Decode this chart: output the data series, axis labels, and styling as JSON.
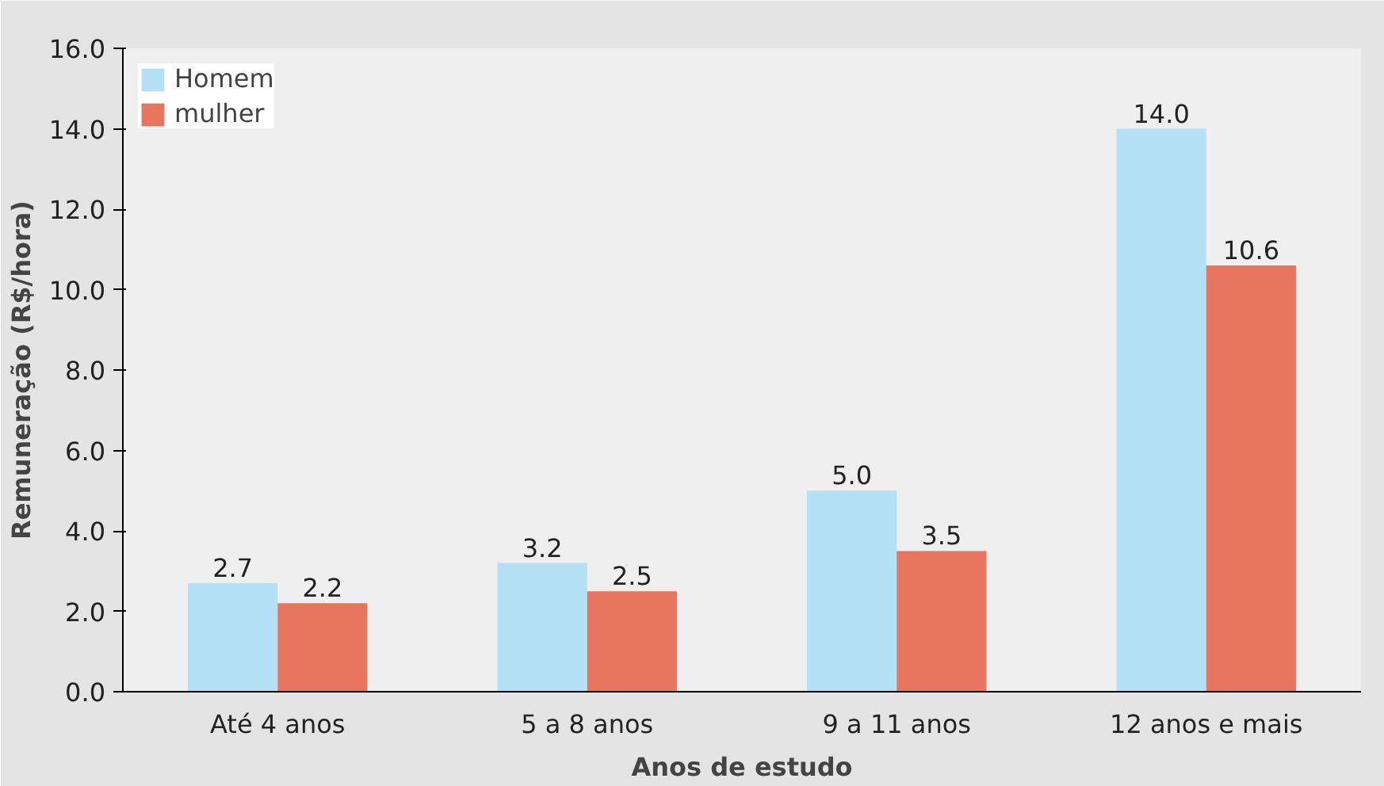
{
  "chart_data": {
    "type": "bar",
    "xlabel": "Anos de estudo",
    "ylabel": "Remuneração (R$/hora)",
    "categories": [
      "Até 4 anos",
      "5 a 8 anos",
      "9 a 11 anos",
      "12 anos e mais"
    ],
    "series": [
      {
        "name": "Homem",
        "color": "#b5e1f6",
        "values": [
          2.7,
          3.2,
          5.0,
          14.0
        ],
        "value_labels": [
          "2.7",
          "3.2",
          "5.0",
          "14.0"
        ]
      },
      {
        "name": "mulher",
        "color": "#e8765e",
        "values": [
          2.2,
          2.5,
          3.5,
          10.6
        ],
        "value_labels": [
          "2.2",
          "2.5",
          "3.5",
          "10.6"
        ]
      }
    ],
    "ylim": [
      0,
      16
    ],
    "yticks": [
      {
        "value": 0,
        "label": "0.0"
      },
      {
        "value": 2,
        "label": "2.0"
      },
      {
        "value": 4,
        "label": "4.0"
      },
      {
        "value": 6,
        "label": "6.0"
      },
      {
        "value": 8,
        "label": "8.0"
      },
      {
        "value": 10,
        "label": "10.0"
      },
      {
        "value": 12,
        "label": "12.0"
      },
      {
        "value": 14,
        "label": "14.0"
      },
      {
        "value": 16,
        "label": "16.0"
      }
    ],
    "grid": false,
    "legend": "top left"
  }
}
